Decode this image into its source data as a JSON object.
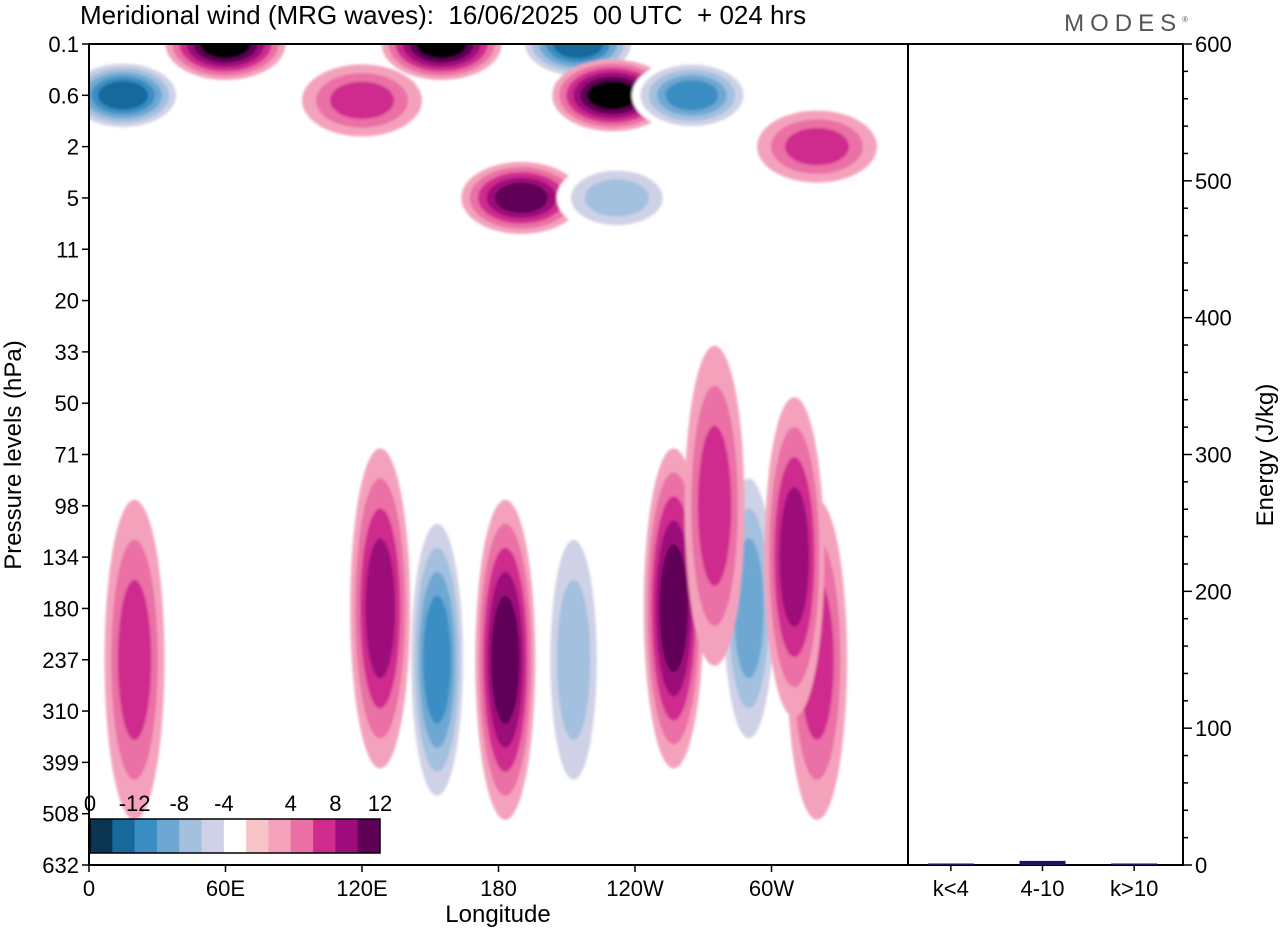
{
  "header": {
    "title": "Meridional wind (MRG waves):  16/06/2025  00 UTC  + 024 hrs",
    "brand": "MODES",
    "brand_mark": "®"
  },
  "chart_data": [
    {
      "type": "heatmap",
      "title": "Meridional wind (MRG waves):  16/06/2025  00 UTC  + 024 hrs",
      "xlabel": "Longitude",
      "ylabel": "Pressure levels (hPa)",
      "x_ticks": [
        "0",
        "60E",
        "120E",
        "180",
        "120W",
        "60W"
      ],
      "x_tick_values": [
        0,
        60,
        120,
        180,
        240,
        300
      ],
      "xlim": [
        0,
        360
      ],
      "y_ticks": [
        "0.1",
        "0.6",
        "2",
        "5",
        "11",
        "20",
        "33",
        "50",
        "71",
        "98",
        "134",
        "180",
        "237",
        "310",
        "399",
        "508",
        "632"
      ],
      "y_scale": "model levels (top 0.1 hPa, bottom 632 hPa)",
      "colorbar": {
        "tick_labels": [
          "-12",
          "-8",
          "-4",
          "0",
          "4",
          "8",
          "12"
        ],
        "levels": [
          -14,
          -12,
          -10,
          -8,
          -6,
          -4,
          -2,
          2,
          4,
          6,
          8,
          10,
          12,
          14
        ],
        "colors": [
          "#0b3553",
          "#17699b",
          "#3a8ec3",
          "#6ea8d2",
          "#a3c0df",
          "#cfd2e6",
          "#ffffff",
          "#f7c5c8",
          "#f4a2bc",
          "#ea6fa5",
          "#cf2c8e",
          "#9d0c7a",
          "#5e0056"
        ]
      },
      "features": [
        {
          "lon": 15,
          "level": "0.6",
          "value": -13
        },
        {
          "lon": 60,
          "level": "0.1",
          "value": 13
        },
        {
          "lon": 155,
          "level": "0.1",
          "value": 12
        },
        {
          "lon": 215,
          "level": "0.1",
          "value": -13
        },
        {
          "lon": 230,
          "level": "0.6",
          "value": 12
        },
        {
          "lon": 190,
          "level": "5",
          "value": 10
        },
        {
          "lon": 232,
          "level": "5",
          "value": -7
        },
        {
          "lon": 265,
          "level": "0.6",
          "value": -10
        },
        {
          "lon": 120,
          "level": "1",
          "value": 6
        },
        {
          "lon": 320,
          "level": "2",
          "value": 7
        },
        {
          "lon": 153,
          "level": "237",
          "value": -10
        },
        {
          "lon": 183,
          "level": "237",
          "value": 10
        },
        {
          "lon": 128,
          "level": "180",
          "value": 8
        },
        {
          "lon": 257,
          "level": "180",
          "value": 11
        },
        {
          "lon": 290,
          "level": "180",
          "value": -9
        },
        {
          "lon": 320,
          "level": "237",
          "value": 6
        },
        {
          "lon": 20,
          "level": "237",
          "value": 6
        },
        {
          "lon": 213,
          "level": "237",
          "value": -6
        },
        {
          "lon": 310,
          "level": "134",
          "value": 8
        },
        {
          "lon": 275,
          "level": "98",
          "value": 7
        }
      ]
    },
    {
      "type": "bar",
      "categories": [
        "k<4",
        "4-10",
        "k>10"
      ],
      "values": [
        0,
        3,
        0
      ],
      "ylabel": "Energy (J/kg)",
      "ylim": [
        0,
        600
      ],
      "y_ticks": [
        0,
        100,
        200,
        300,
        400,
        500,
        600
      ],
      "bar_color": "#1a1464"
    }
  ]
}
